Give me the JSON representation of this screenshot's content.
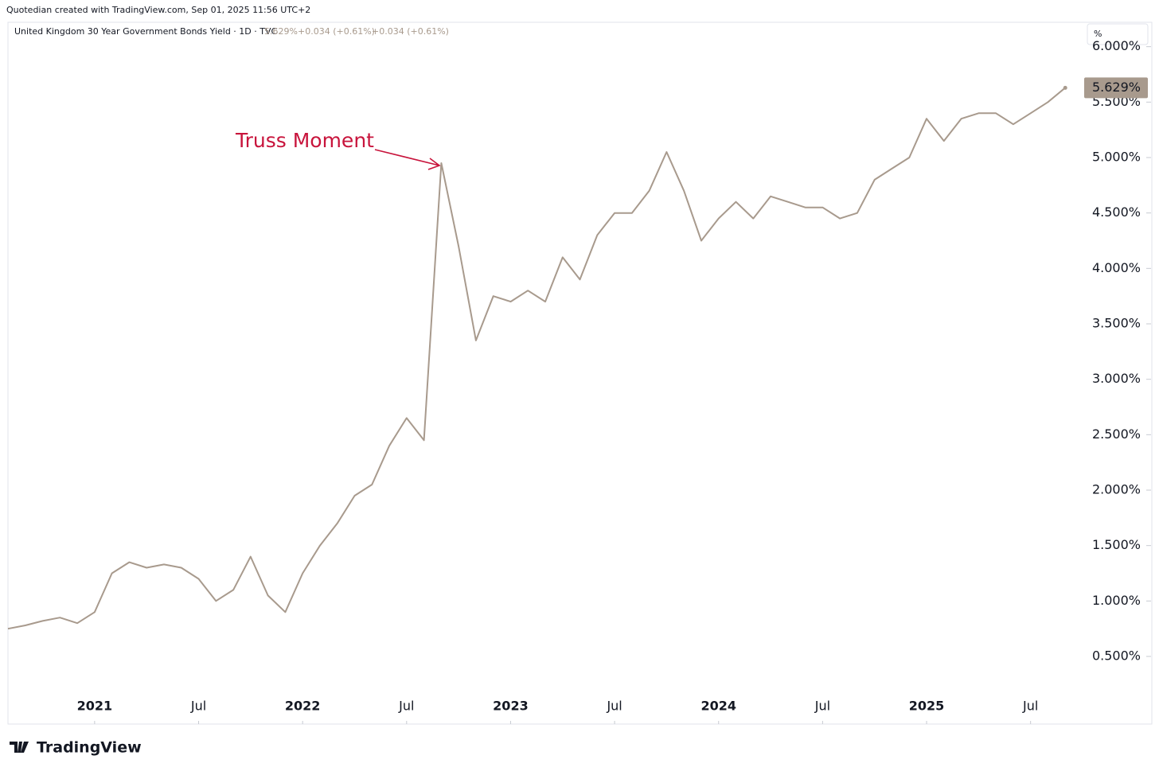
{
  "chart_data": {
    "type": "line",
    "credit": "Quotedian created with TradingView.com, Sep 01, 2025 11:56 UTC+2",
    "title": "United Kingdom 30 Year Government Bonds Yield · 1D · TVC",
    "legend_values": [
      "5.629%",
      "+0.034 (+0.61%)",
      "+0.034 (+0.61%)"
    ],
    "y_unit": "%",
    "annotation": "Truss Moment",
    "brand": "TradingView",
    "x": [
      "2020-08",
      "2020-09",
      "2020-10",
      "2020-11",
      "2020-12",
      "2021-01",
      "2021-02",
      "2021-03",
      "2021-04",
      "2021-05",
      "2021-06",
      "2021-07",
      "2021-08",
      "2021-09",
      "2021-10",
      "2021-11",
      "2021-12",
      "2022-01",
      "2022-02",
      "2022-03",
      "2022-04",
      "2022-05",
      "2022-06",
      "2022-07",
      "2022-08",
      "2022-09",
      "2022-10",
      "2022-11",
      "2022-12",
      "2023-01",
      "2023-02",
      "2023-03",
      "2023-04",
      "2023-05",
      "2023-06",
      "2023-07",
      "2023-08",
      "2023-09",
      "2023-10",
      "2023-11",
      "2023-12",
      "2024-01",
      "2024-02",
      "2024-03",
      "2024-04",
      "2024-05",
      "2024-06",
      "2024-07",
      "2024-08",
      "2024-09",
      "2024-10",
      "2024-11",
      "2024-12",
      "2025-01",
      "2025-02",
      "2025-03",
      "2025-04",
      "2025-05",
      "2025-06",
      "2025-07",
      "2025-08",
      "2025-09"
    ],
    "series": [
      {
        "name": "United Kingdom 30 Year Government Bonds Yield",
        "color": "#a89a8d",
        "values": [
          0.75,
          0.78,
          0.82,
          0.85,
          0.8,
          0.9,
          1.25,
          1.35,
          1.3,
          1.33,
          1.3,
          1.2,
          1.0,
          1.1,
          1.4,
          1.05,
          0.9,
          1.25,
          1.5,
          1.7,
          1.95,
          2.05,
          2.4,
          2.65,
          2.45,
          4.95,
          4.2,
          3.35,
          3.75,
          3.7,
          3.8,
          3.7,
          4.1,
          3.9,
          4.3,
          4.5,
          4.5,
          4.7,
          5.05,
          4.7,
          4.25,
          4.45,
          4.6,
          4.45,
          4.65,
          4.6,
          4.55,
          4.55,
          4.45,
          4.5,
          4.8,
          4.9,
          5.0,
          5.35,
          5.15,
          5.35,
          5.4,
          5.4,
          5.3,
          5.4,
          5.5,
          5.629
        ]
      }
    ],
    "xlim": [
      "2020-08",
      "2025-10"
    ],
    "xticks": [
      {
        "value": "2021-01",
        "label": "2021"
      },
      {
        "value": "2021-07",
        "label": "Jul"
      },
      {
        "value": "2022-01",
        "label": "2022"
      },
      {
        "value": "2022-07",
        "label": "Jul"
      },
      {
        "value": "2023-01",
        "label": "2023"
      },
      {
        "value": "2023-07",
        "label": "Jul"
      },
      {
        "value": "2024-01",
        "label": "2024"
      },
      {
        "value": "2024-07",
        "label": "Jul"
      },
      {
        "value": "2025-01",
        "label": "2025"
      },
      {
        "value": "2025-07",
        "label": "Jul"
      }
    ],
    "ylim": [
      -0.11,
      6.22
    ],
    "yticks": [
      {
        "value": 0.5,
        "label": "0.500%"
      },
      {
        "value": 1.0,
        "label": "1.000%"
      },
      {
        "value": 1.5,
        "label": "1.500%"
      },
      {
        "value": 2.0,
        "label": "2.000%"
      },
      {
        "value": 2.5,
        "label": "2.500%"
      },
      {
        "value": 3.0,
        "label": "3.000%"
      },
      {
        "value": 3.5,
        "label": "3.500%"
      },
      {
        "value": 4.0,
        "label": "4.000%"
      },
      {
        "value": 4.5,
        "label": "4.500%"
      },
      {
        "value": 5.0,
        "label": "5.000%"
      },
      {
        "value": 5.5,
        "label": "5.500%"
      },
      {
        "value": 6.0,
        "label": "6.000%"
      }
    ],
    "grid": false
  }
}
